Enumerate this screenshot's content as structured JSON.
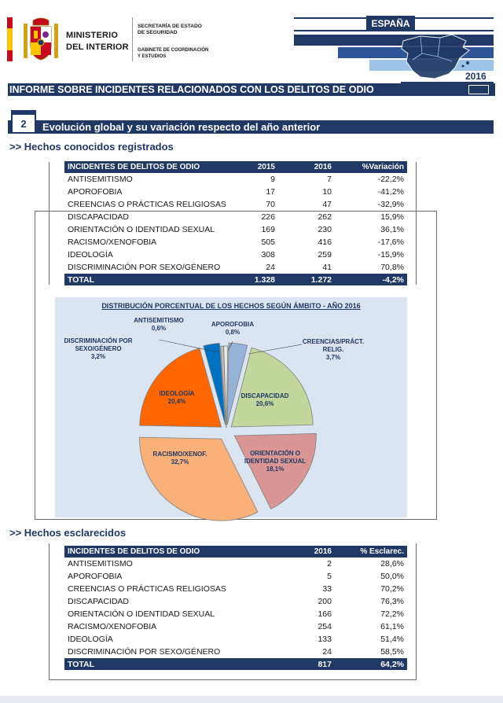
{
  "header": {
    "ministry_line1": "MINISTERIO",
    "ministry_line2": "DEL  INTERIOR",
    "secretaria_line1": "SECRETARÍA DE ESTADO",
    "secretaria_line2": "DE SEGURIDAD",
    "gabinete_line1": "GABINETE DE COORDINACIÓN",
    "gabinete_line2": "Y ESTUDIOS",
    "country": "ESPAÑA",
    "year": "2016"
  },
  "report_title": "INFORME SOBRE INCIDENTES RELACIONADOS CON LOS DELITOS DE ODIO",
  "section": {
    "number": "2",
    "title": "Evolución global y su variación respecto del año anterior"
  },
  "subsection1": ">> Hechos  conocidos registrados",
  "subsection2": ">> Hechos esclarecidos",
  "table1": {
    "headers": [
      "INCIDENTES DE DELITOS DE ODIO",
      "2015",
      "2016",
      "%Variación"
    ],
    "rows": [
      [
        "ANTISEMITISMO",
        "9",
        "7",
        "-22,2%"
      ],
      [
        "APOROFOBIA",
        "17",
        "10",
        "-41,2%"
      ],
      [
        "CREENCIAS O PRÁCTICAS RELIGIOSAS",
        "70",
        "47",
        "-32,9%"
      ],
      [
        "DISCAPACIDAD",
        "226",
        "262",
        "15,9%"
      ],
      [
        "ORIENTACIÓN O IDENTIDAD SEXUAL",
        "169",
        "230",
        "36,1%"
      ],
      [
        "RACISMO/XENOFOBIA",
        "505",
        "416",
        "-17,6%"
      ],
      [
        "IDEOLOGÍA",
        "308",
        "259",
        "-15,9%"
      ],
      [
        "DISCRIMINACIÓN POR SEXO/GÉNERO",
        "24",
        "41",
        "70,8%"
      ]
    ],
    "total": [
      "TOTAL",
      "1.328",
      "1.272",
      "-4,2%"
    ]
  },
  "chart_data": {
    "type": "pie",
    "title": "DISTRIBUCIÓN PORCENTUAL DE LOS HECHOS SEGÚN ÁMBITO - AÑO 2016",
    "slices": [
      {
        "name": "ANTISEMITISMO",
        "label_lines": [
          "ANTISEMITISMO",
          "0,6%"
        ],
        "value": 0.6,
        "color": "#bfbfbf"
      },
      {
        "name": "APOROFOBIA",
        "label_lines": [
          "APOROFOBIA",
          "0,8%"
        ],
        "value": 0.8,
        "color": "#e8e8e8"
      },
      {
        "name": "CREENCIAS/PRÁCT. RELIG.",
        "label_lines": [
          "CREENCIAS/PRÁCT.",
          "RELIG.",
          "3,7%"
        ],
        "value": 3.7,
        "color": "#95b3d7"
      },
      {
        "name": "DISCAPACIDAD",
        "label_lines": [
          "DISCAPACIDAD",
          "20,6%"
        ],
        "value": 20.6,
        "color": "#c3d69b"
      },
      {
        "name": "ORIENTACIÓN O IDENTIDAD SEXUAL",
        "label_lines": [
          "ORIENTACIÓN O",
          "IDENTIDAD SEXUAL",
          "18,1%"
        ],
        "value": 18.1,
        "color": "#d99694"
      },
      {
        "name": "RACISMO/XENOF.",
        "label_lines": [
          "RACISMO/XENOF.",
          "32,7%"
        ],
        "value": 32.7,
        "color": "#fab179"
      },
      {
        "name": "IDEOLOGÍA",
        "label_lines": [
          "IDEOLOGÍA",
          "20,4%"
        ],
        "value": 20.4,
        "color": "#ff6600"
      },
      {
        "name": "DISCRIMINACIÓN POR SEXO/GÉNERO",
        "label_lines": [
          "DISCRIMINACIÓN POR",
          "SEXO/GÉNERO",
          "3,2%"
        ],
        "value": 3.2,
        "color": "#0070c0"
      }
    ]
  },
  "table2": {
    "headers": [
      "INCIDENTES DE DELITOS DE ODIO",
      "2016",
      "% Esclarec."
    ],
    "rows": [
      [
        "ANTISEMITISMO",
        "2",
        "28,6%"
      ],
      [
        "APOROFOBIA",
        "5",
        "50,0%"
      ],
      [
        "CREENCIAS O PRÁCTICAS RELIGIOSAS",
        "33",
        "70,2%"
      ],
      [
        "DISCAPACIDAD",
        "200",
        "76,3%"
      ],
      [
        "ORIENTACIÓN O IDENTIDAD SEXUAL",
        "166",
        "72,2%"
      ],
      [
        "RACISMO/XENOFOBIA",
        "254",
        "61,1%"
      ],
      [
        "IDEOLOGÍA",
        "133",
        "51,4%"
      ],
      [
        "DISCRIMINACIÓN POR SEXO/GÉNERO",
        "24",
        "58,5%"
      ]
    ],
    "total": [
      "TOTAL",
      "817",
      "64,2%"
    ]
  }
}
